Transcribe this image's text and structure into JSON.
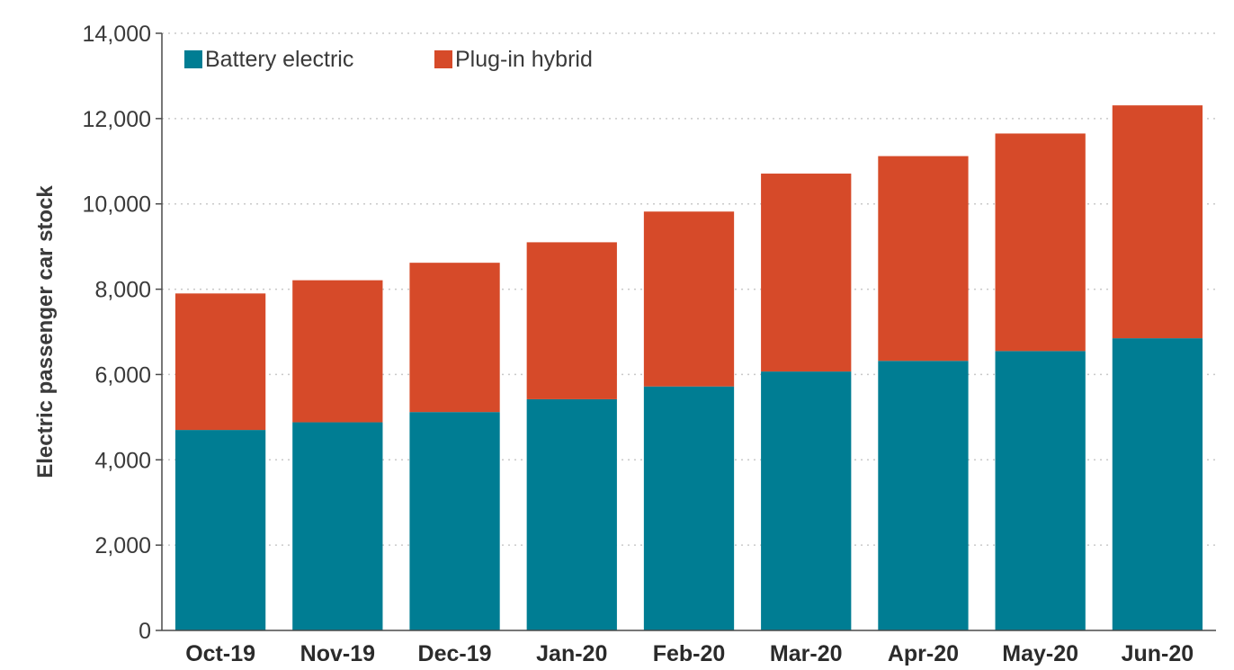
{
  "chart_data": {
    "type": "bar",
    "stacked": true,
    "categories": [
      "Oct-19",
      "Nov-19",
      "Dec-19",
      "Jan-20",
      "Feb-20",
      "Mar-20",
      "Apr-20",
      "May-20",
      "Jun-20"
    ],
    "series": [
      {
        "name": "Battery electric",
        "color": "#007d93",
        "values": [
          4700,
          4880,
          5120,
          5420,
          5720,
          6070,
          6320,
          6550,
          6850
        ]
      },
      {
        "name": "Plug-in hybrid",
        "color": "#d64a29",
        "values": [
          3200,
          3330,
          3500,
          3680,
          4100,
          4640,
          4800,
          5100,
          5460
        ]
      }
    ],
    "title": "",
    "xlabel": "",
    "ylabel": "Electric passenger car stock",
    "ylim": [
      0,
      14000
    ],
    "yticks": [
      0,
      2000,
      4000,
      6000,
      8000,
      10000,
      12000,
      14000
    ],
    "ytick_labels": [
      "0",
      "2,000",
      "4,000",
      "6,000",
      "8,000",
      "10,000",
      "12,000",
      "14,000"
    ],
    "grid": "horizontal-dotted",
    "legend_position": "top-left"
  }
}
